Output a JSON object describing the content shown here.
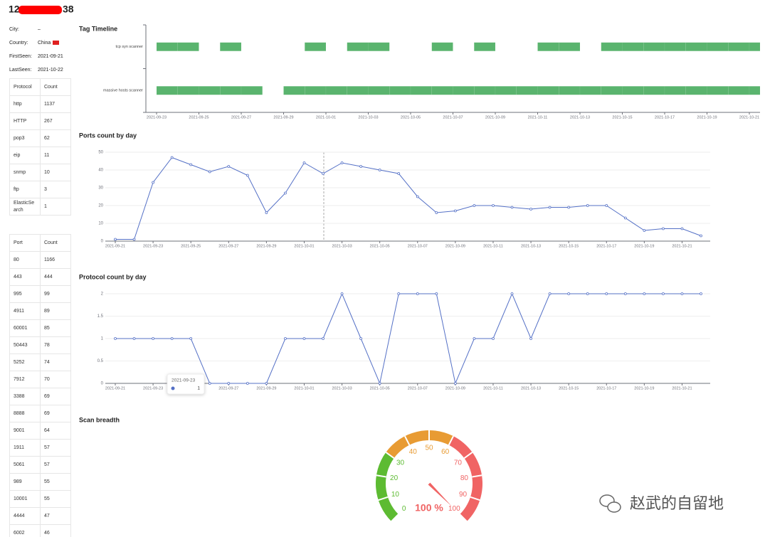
{
  "header": {
    "title_start": "12",
    "title_end": "38"
  },
  "info": [
    {
      "label": "City:",
      "value": "–"
    },
    {
      "label": "Country:",
      "value": "China"
    },
    {
      "label": "FirstSeen:",
      "value": "2021-09-21"
    },
    {
      "label": "LastSeen:",
      "value": "2021-10-22"
    }
  ],
  "protocol_table": {
    "columns": [
      "Protocol",
      "Count"
    ],
    "rows": [
      [
        "http",
        1137
      ],
      [
        "HTTP",
        267
      ],
      [
        "pop3",
        62
      ],
      [
        "eip",
        11
      ],
      [
        "snmp",
        10
      ],
      [
        "ftp",
        3
      ],
      [
        "ElasticSearch",
        1
      ]
    ]
  },
  "port_table": {
    "columns": [
      "Port",
      "Count"
    ],
    "rows": [
      [
        80,
        1166
      ],
      [
        443,
        444
      ],
      [
        995,
        99
      ],
      [
        4911,
        89
      ],
      [
        60001,
        85
      ],
      [
        50443,
        78
      ],
      [
        5252,
        74
      ],
      [
        7912,
        70
      ],
      [
        3388,
        69
      ],
      [
        8888,
        69
      ],
      [
        9001,
        64
      ],
      [
        1911,
        57
      ],
      [
        5061,
        57
      ],
      [
        989,
        55
      ],
      [
        10001,
        55
      ],
      [
        4444,
        47
      ],
      [
        6002,
        46
      ]
    ]
  },
  "chart_data": [
    {
      "type": "timeline",
      "title": "Tag Timeline",
      "color": "#5ab46e",
      "categories": [
        "tcp syn scanner",
        "massive hosts scanner"
      ],
      "days": [
        [
          "2021-09-23",
          "2021-09-24",
          "2021-09-26",
          "2021-09-30",
          "2021-10-02",
          "2021-10-03",
          "2021-10-06",
          "2021-10-08",
          "2021-10-11",
          "2021-10-12",
          "2021-10-14",
          "2021-10-15",
          "2021-10-16",
          "2021-10-17",
          "2021-10-18",
          "2021-10-19",
          "2021-10-20",
          "2021-10-21"
        ],
        [
          "2021-09-23",
          "2021-09-24",
          "2021-09-25",
          "2021-09-26",
          "2021-09-27",
          "2021-09-29",
          "2021-09-30",
          "2021-10-01",
          "2021-10-02",
          "2021-10-03",
          "2021-10-04",
          "2021-10-05",
          "2021-10-06",
          "2021-10-07",
          "2021-10-08",
          "2021-10-09",
          "2021-10-10",
          "2021-10-11",
          "2021-10-12",
          "2021-10-13",
          "2021-10-14",
          "2021-10-15",
          "2021-10-16",
          "2021-10-17",
          "2021-10-18",
          "2021-10-19",
          "2021-10-20",
          "2021-10-21"
        ]
      ],
      "xticks": [
        "2021-09-23",
        "2021-09-25",
        "2021-09-27",
        "2021-09-29",
        "2021-10-01",
        "2021-10-03",
        "2021-10-05",
        "2021-10-07",
        "2021-10-09",
        "2021-10-11",
        "2021-10-13",
        "2021-10-15",
        "2021-10-17",
        "2021-10-19",
        "2021-10-21"
      ]
    },
    {
      "type": "line",
      "title": "Ports count by day",
      "color": "#5470c6",
      "grid": true,
      "categories": [
        "2021-09-21",
        null,
        "2021-09-23",
        null,
        "2021-09-25",
        null,
        "2021-09-27",
        null,
        "2021-09-29",
        null,
        "2021-10-01",
        null,
        "2021-10-03",
        null,
        "2021-10-05",
        null,
        "2021-10-07",
        null,
        "2021-10-09",
        null,
        "2021-10-11",
        null,
        "2021-10-13",
        null,
        "2021-10-15",
        null,
        "2021-10-17",
        null,
        "2021-10-19",
        null,
        "2021-10-21",
        null
      ],
      "values": [
        1,
        1,
        33,
        47,
        43,
        39,
        42,
        37,
        16,
        27,
        44,
        38,
        44,
        42,
        40,
        38,
        25,
        16,
        17,
        20,
        20,
        19,
        18,
        19,
        19,
        20,
        20,
        13,
        6,
        7,
        7,
        3
      ],
      "ylim": [
        0,
        50
      ],
      "yticks": [
        0,
        10,
        20,
        30,
        40,
        50
      ]
    },
    {
      "type": "line",
      "title": "Protocol count by day",
      "color": "#5470c6",
      "grid": true,
      "categories": [
        "2021-09-21",
        null,
        "2021-09-23",
        null,
        "2021-09-25",
        null,
        "2021-09-27",
        null,
        "2021-09-29",
        null,
        "2021-10-01",
        null,
        "2021-10-03",
        null,
        "2021-10-05",
        null,
        "2021-10-07",
        null,
        "2021-10-09",
        null,
        "2021-10-11",
        null,
        "2021-10-13",
        null,
        "2021-10-15",
        null,
        "2021-10-17",
        null,
        "2021-10-19",
        null,
        "2021-10-21",
        null
      ],
      "values": [
        1,
        1,
        1,
        1,
        1,
        0,
        0,
        0,
        0,
        1,
        1,
        1,
        2,
        1,
        0,
        2,
        2,
        2,
        0,
        1,
        1,
        2,
        1,
        2,
        2,
        2,
        2,
        2,
        2,
        2,
        2,
        2
      ],
      "ylim": [
        0,
        2
      ],
      "yticks": [
        0,
        0.5,
        1,
        1.5,
        2
      ],
      "tooltip": {
        "title": "2021-09-23",
        "value": 1
      }
    },
    {
      "type": "gauge",
      "title": "Scan breadth",
      "value": 100,
      "value_labels": "100 %",
      "ylim": [
        0,
        100
      ],
      "yticks": [
        0,
        10,
        20,
        30,
        40,
        50,
        60,
        70,
        80,
        90,
        100
      ],
      "bands": [
        {
          "to": 30,
          "color": "#5dbb32"
        },
        {
          "to": 60,
          "color": "#e89b33"
        },
        {
          "to": 100,
          "color": "#f06464"
        }
      ]
    }
  ],
  "watermark": "赵武的自留地"
}
